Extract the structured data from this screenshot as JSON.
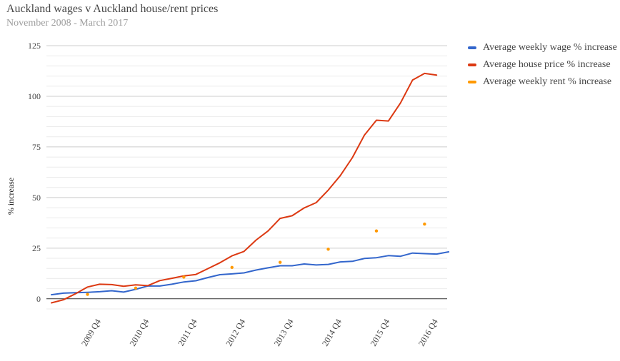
{
  "chart_data": {
    "type": "line",
    "title": "Auckland wages v Auckland house/rent prices",
    "subtitle": "November 2008 - March 2017",
    "ylabel": "% increase",
    "xlabel": "",
    "ylim": [
      -5,
      125
    ],
    "yticks": [
      0,
      25,
      50,
      75,
      100,
      125
    ],
    "x_quarters": [
      "2008 Q4",
      "2009 Q1",
      "2009 Q2",
      "2009 Q3",
      "2009 Q4",
      "2010 Q1",
      "2010 Q2",
      "2010 Q3",
      "2010 Q4",
      "2011 Q1",
      "2011 Q2",
      "2011 Q3",
      "2011 Q4",
      "2012 Q1",
      "2012 Q2",
      "2012 Q3",
      "2012 Q4",
      "2013 Q1",
      "2013 Q2",
      "2013 Q3",
      "2013 Q4",
      "2014 Q1",
      "2014 Q2",
      "2014 Q3",
      "2014 Q4",
      "2015 Q1",
      "2015 Q2",
      "2015 Q3",
      "2015 Q4",
      "2016 Q1",
      "2016 Q2",
      "2016 Q3",
      "2016 Q4",
      "2017 Q1"
    ],
    "xtick_labels": [
      "2009 Q4",
      "2010 Q4",
      "2011 Q4",
      "2012 Q4",
      "2013 Q4",
      "2014 Q4",
      "2015 Q4",
      "2016 Q4"
    ],
    "grid": true,
    "legend_position": "right",
    "series": [
      {
        "name": "Average weekly wage % increase",
        "color": "#3366cc",
        "style": "line",
        "values": [
          2.0,
          2.8,
          3.0,
          3.2,
          3.5,
          4.0,
          3.3,
          4.7,
          6.3,
          6.3,
          7.2,
          8.3,
          8.9,
          10.5,
          11.9,
          12.3,
          12.8,
          14.2,
          15.3,
          16.3,
          16.3,
          17.2,
          16.7,
          17.0,
          18.2,
          18.5,
          19.9,
          20.3,
          21.3,
          21.0,
          22.6,
          22.3,
          22.1,
          23.2
        ]
      },
      {
        "name": "Average house price % increase",
        "color": "#dc3912",
        "style": "line",
        "values": [
          -2.0,
          -0.5,
          2.5,
          5.8,
          7.2,
          7.0,
          6.2,
          6.9,
          6.5,
          9.0,
          10.1,
          11.3,
          12.0,
          14.9,
          17.8,
          21.2,
          23.4,
          29.0,
          33.5,
          39.7,
          41.0,
          44.9,
          47.5,
          53.7,
          60.8,
          69.7,
          80.8,
          88.2,
          87.8,
          96.7,
          108.0,
          111.3,
          110.5,
          null
        ]
      },
      {
        "name": "Average weekly rent % increase",
        "color": "#ff9900",
        "style": "points",
        "values": [
          null,
          null,
          null,
          2.2,
          null,
          null,
          null,
          5.3,
          null,
          null,
          null,
          10.7,
          null,
          null,
          null,
          15.5,
          null,
          null,
          null,
          18.0,
          null,
          null,
          null,
          24.5,
          null,
          null,
          null,
          33.5,
          null,
          null,
          null,
          36.9,
          null,
          null
        ]
      }
    ]
  }
}
